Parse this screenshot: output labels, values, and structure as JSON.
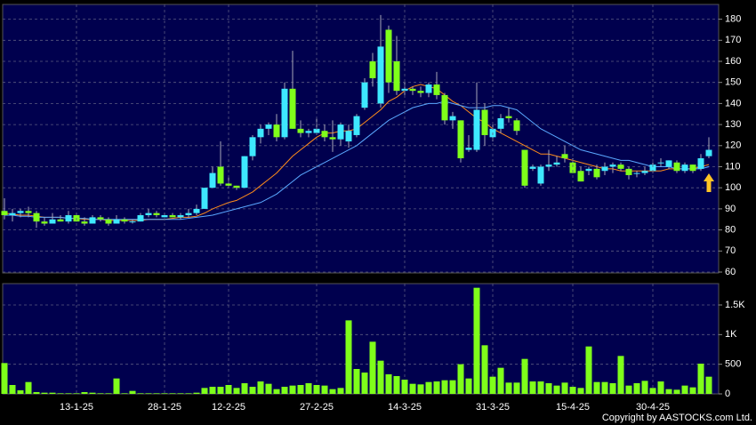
{
  "chart_data": [
    {
      "type": "candlestick",
      "open": [
        89,
        87,
        88,
        89,
        88,
        84,
        83,
        85,
        84,
        87,
        84,
        83,
        86,
        85,
        83,
        85,
        84,
        84,
        87,
        88,
        86,
        87,
        86,
        87,
        88,
        90,
        100,
        110,
        102,
        101,
        100,
        115,
        124,
        128,
        130,
        124,
        147,
        128,
        126,
        126,
        127,
        124,
        123,
        122,
        125,
        138,
        160,
        140,
        175,
        160,
        146,
        147,
        146,
        145,
        149,
        144,
        132,
        132,
        118,
        118,
        137,
        124,
        128,
        134,
        132,
        118,
        109,
        102,
        110,
        111,
        116,
        112,
        108,
        108,
        109,
        108,
        110,
        111,
        109,
        107,
        107,
        108,
        112,
        110,
        112,
        108,
        111,
        109,
        115
      ],
      "high": [
        95,
        90,
        90,
        91,
        89,
        86,
        88,
        87,
        89,
        88,
        86,
        87,
        87,
        86,
        87,
        86,
        85,
        88,
        90,
        89,
        88,
        88,
        88,
        90,
        92,
        100,
        110,
        122,
        105,
        101,
        115,
        125,
        130,
        131,
        135,
        150,
        165,
        132,
        128,
        133,
        130,
        132,
        131,
        130,
        135,
        152,
        164,
        182,
        177,
        172,
        150,
        148,
        148,
        150,
        155,
        145,
        136,
        132,
        125,
        150,
        140,
        130,
        135,
        138,
        133,
        118,
        111,
        111,
        118,
        115,
        120,
        114,
        110,
        110,
        111,
        112,
        112,
        112,
        110,
        108,
        110,
        112,
        114,
        113,
        113,
        112,
        111,
        116,
        124
      ],
      "low": [
        85,
        84,
        86,
        86,
        81,
        82,
        83,
        84,
        83,
        84,
        82,
        83,
        84,
        82,
        83,
        83,
        83,
        84,
        86,
        86,
        86,
        86,
        85,
        86,
        87,
        90,
        100,
        101,
        100,
        99,
        100,
        113,
        121,
        125,
        122,
        123,
        128,
        124,
        124,
        125,
        122,
        117,
        120,
        119,
        124,
        137,
        148,
        138,
        145,
        144,
        144,
        144,
        143,
        143,
        142,
        130,
        128,
        112,
        117,
        117,
        120,
        122,
        126,
        131,
        125,
        100,
        108,
        101,
        108,
        110,
        112,
        107,
        103,
        106,
        104,
        106,
        107,
        108,
        104,
        105,
        106,
        107,
        110,
        109,
        107,
        107,
        107,
        108,
        114
      ],
      "close": [
        87,
        88,
        89,
        88,
        84,
        83,
        85,
        84,
        87,
        84,
        83,
        86,
        85,
        83,
        85,
        84,
        84,
        87,
        88,
        87,
        87,
        86,
        87,
        88,
        90,
        100,
        107,
        102,
        101,
        100,
        115,
        124,
        128,
        130,
        124,
        147,
        128,
        126,
        127,
        128,
        124,
        123,
        130,
        127,
        134,
        150,
        152,
        167,
        150,
        146,
        147,
        146,
        145,
        149,
        144,
        132,
        134,
        114,
        119,
        137,
        125,
        128,
        133,
        133,
        127,
        101,
        110,
        110,
        111,
        112,
        114,
        107,
        103,
        109,
        105,
        110,
        111,
        109,
        106,
        107,
        108,
        111,
        112,
        113,
        108,
        111,
        108,
        114,
        118
      ],
      "up_color": "#3ee8ff",
      "down_color": "#7fff1a",
      "wick_color": "#a8a8b8",
      "lines": [
        {
          "color": "#ff8c1a",
          "values": [
            88,
            87.5,
            87,
            87,
            86.5,
            86,
            86,
            86,
            85.5,
            85.5,
            85,
            85,
            85,
            84.5,
            84.5,
            84.5,
            84.5,
            84.5,
            85,
            85,
            85,
            85.5,
            86,
            86,
            86.5,
            88,
            90,
            91.5,
            93,
            94,
            96,
            98,
            101,
            104,
            107,
            111,
            115,
            118,
            121,
            124,
            126,
            126,
            127,
            127,
            128,
            131,
            134,
            137,
            141,
            143,
            146,
            148,
            149,
            148,
            147,
            144,
            141,
            139,
            136,
            133,
            131,
            128,
            126,
            124,
            122,
            120,
            118,
            116,
            116,
            115,
            114,
            113,
            112,
            111,
            110,
            109,
            109,
            108,
            108,
            108,
            108,
            108,
            108,
            109,
            109,
            109,
            109,
            110,
            111
          ]
        },
        {
          "color": "#5aa8ff",
          "values": [
            87,
            87,
            86.5,
            86.5,
            86,
            86,
            86,
            86,
            85.5,
            85.5,
            85.5,
            85,
            85,
            85,
            85,
            85,
            85,
            85,
            85,
            85,
            85,
            85,
            85,
            85.5,
            86,
            86.5,
            87,
            88,
            89,
            90,
            91,
            92,
            93,
            95,
            97,
            100,
            103,
            106,
            108,
            110,
            112,
            114,
            116,
            118,
            120,
            123,
            126,
            129,
            132,
            134,
            136,
            138,
            139,
            140,
            140,
            141,
            140,
            139,
            138,
            138,
            138,
            139,
            139,
            138,
            137,
            134,
            131,
            128,
            126,
            124,
            122,
            120,
            118,
            117,
            116,
            115,
            114,
            113,
            113,
            112,
            111,
            110,
            110,
            110,
            109,
            109,
            109,
            109,
            110
          ]
        }
      ],
      "ylim": [
        60,
        187
      ],
      "yticks": [
        60,
        70,
        80,
        90,
        100,
        110,
        120,
        130,
        140,
        150,
        160,
        170,
        180
      ],
      "grid": true
    },
    {
      "type": "bar",
      "categories": [
        null,
        null,
        null,
        null,
        null,
        null,
        null,
        null,
        null,
        "13-1-25",
        null,
        null,
        null,
        null,
        null,
        null,
        null,
        null,
        null,
        null,
        "28-1-25",
        null,
        null,
        null,
        null,
        null,
        null,
        null,
        "12-2-25",
        null,
        null,
        null,
        null,
        null,
        null,
        null,
        null,
        null,
        null,
        "27-2-25",
        null,
        null,
        null,
        null,
        null,
        null,
        null,
        null,
        null,
        null,
        "14-3-25",
        null,
        null,
        null,
        null,
        null,
        null,
        null,
        null,
        null,
        null,
        "31-3-25",
        null,
        null,
        null,
        null,
        null,
        null,
        null,
        null,
        null,
        "15-4-25",
        null,
        null,
        null,
        null,
        null,
        null,
        null,
        null,
        null,
        "30-4-25",
        null,
        null,
        null,
        null,
        null,
        null,
        null
      ],
      "values": [
        520,
        150,
        60,
        200,
        30,
        20,
        20,
        10,
        10,
        10,
        30,
        20,
        10,
        10,
        260,
        10,
        50,
        10,
        10,
        10,
        10,
        10,
        10,
        10,
        20,
        100,
        120,
        120,
        150,
        100,
        180,
        120,
        210,
        170,
        80,
        120,
        140,
        150,
        180,
        150,
        140,
        80,
        100,
        1240,
        420,
        360,
        880,
        560,
        330,
        300,
        240,
        170,
        160,
        200,
        210,
        230,
        230,
        500,
        260,
        1790,
        820,
        290,
        440,
        190,
        190,
        590,
        210,
        210,
        180,
        140,
        190,
        120,
        100,
        800,
        200,
        200,
        180,
        640,
        140,
        180,
        220,
        100,
        210,
        80,
        70,
        140,
        110,
        510,
        290
      ],
      "color": "#7fff1a",
      "ylim": [
        0,
        1860
      ],
      "yticks": [
        0,
        500,
        {
          "value": 1000,
          "label": "1K"
        },
        {
          "value": 1500,
          "label": "1.5K"
        }
      ],
      "grid": true
    }
  ],
  "copyright": "Copyright by AASTOCKS.com Ltd."
}
